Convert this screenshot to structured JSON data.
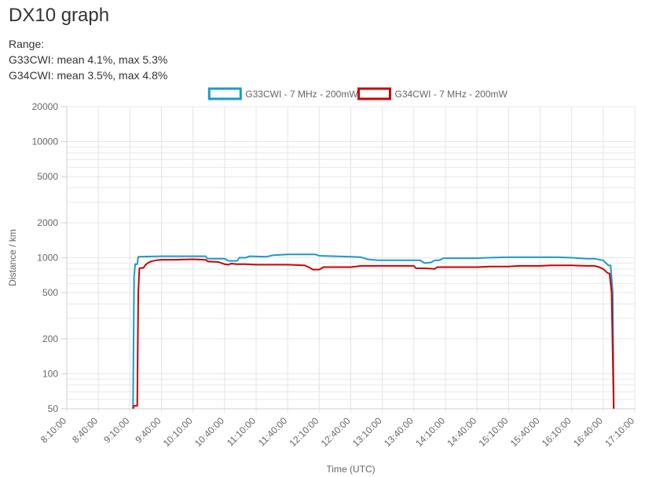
{
  "page": {
    "title": "DX10 graph",
    "range_label": "Range:",
    "stats": [
      "G33CWI: mean 4.1%, max 5.3%",
      "G34CWI: mean 3.5%, max 4.8%"
    ]
  },
  "chart_data": {
    "type": "line",
    "title": "",
    "xlabel": "Time (UTC)",
    "ylabel": "Distance / km",
    "yscale": "log",
    "ylim": [
      50,
      20000
    ],
    "xlim": [
      "8:10:00",
      "17:10:00"
    ],
    "xticks": [
      "8:10:00",
      "8:40:00",
      "9:10:00",
      "9:40:00",
      "10:10:00",
      "10:40:00",
      "11:10:00",
      "11:40:00",
      "12:10:00",
      "12:40:00",
      "13:10:00",
      "13:40:00",
      "14:10:00",
      "14:40:00",
      "15:10:00",
      "15:40:00",
      "16:10:00",
      "16:40:00",
      "17:10:00"
    ],
    "yticks": [
      50,
      100,
      200,
      500,
      1000,
      2000,
      5000,
      10000,
      20000
    ],
    "grid": true,
    "legend_position": "top-center",
    "series": [
      {
        "name": "G33CWI - 7 MHz - 200mW",
        "color": "#1a9bc9",
        "points": [
          [
            "9:13:00",
            50
          ],
          [
            "9:14:00",
            680
          ],
          [
            "9:15:00",
            880
          ],
          [
            "9:17:00",
            880
          ],
          [
            "9:18:00",
            1020
          ],
          [
            "9:40:00",
            1030
          ],
          [
            "10:10:00",
            1030
          ],
          [
            "10:22:00",
            1030
          ],
          [
            "10:24:00",
            980
          ],
          [
            "10:40:00",
            980
          ],
          [
            "10:44:00",
            940
          ],
          [
            "10:52:00",
            940
          ],
          [
            "10:54:00",
            1000
          ],
          [
            "11:00:00",
            1000
          ],
          [
            "11:04:00",
            1030
          ],
          [
            "11:20:00",
            1020
          ],
          [
            "11:26:00",
            1050
          ],
          [
            "11:40:00",
            1070
          ],
          [
            "11:50:00",
            1070
          ],
          [
            "12:06:00",
            1070
          ],
          [
            "12:10:00",
            1040
          ],
          [
            "12:25:00",
            1030
          ],
          [
            "12:40:00",
            1020
          ],
          [
            "12:50:00",
            1010
          ],
          [
            "12:56:00",
            970
          ],
          [
            "13:06:00",
            950
          ],
          [
            "13:40:00",
            950
          ],
          [
            "13:46:00",
            950
          ],
          [
            "13:50:00",
            900
          ],
          [
            "13:56:00",
            910
          ],
          [
            "14:00:00",
            950
          ],
          [
            "14:04:00",
            950
          ],
          [
            "14:08:00",
            990
          ],
          [
            "14:40:00",
            990
          ],
          [
            "14:50:00",
            1000
          ],
          [
            "15:10:00",
            1010
          ],
          [
            "15:40:00",
            1010
          ],
          [
            "15:56:00",
            1010
          ],
          [
            "16:10:00",
            1000
          ],
          [
            "16:24:00",
            980
          ],
          [
            "16:32:00",
            980
          ],
          [
            "16:40:00",
            950
          ],
          [
            "16:42:00",
            910
          ],
          [
            "16:45:00",
            860
          ],
          [
            "16:47:00",
            860
          ],
          [
            "16:49:00",
            500
          ],
          [
            "16:50:00",
            50
          ]
        ]
      },
      {
        "name": "G34CWI - 7 MHz - 200mW",
        "color": "#cc0000",
        "points": [
          [
            "9:13:00",
            50
          ],
          [
            "9:14:00",
            53
          ],
          [
            "9:17:00",
            53
          ],
          [
            "9:18:00",
            500
          ],
          [
            "9:19:00",
            810
          ],
          [
            "9:23:00",
            820
          ],
          [
            "9:25:00",
            870
          ],
          [
            "9:27:00",
            900
          ],
          [
            "9:30:00",
            930
          ],
          [
            "9:35:00",
            950
          ],
          [
            "9:40:00",
            960
          ],
          [
            "9:50:00",
            960
          ],
          [
            "10:10:00",
            970
          ],
          [
            "10:22:00",
            960
          ],
          [
            "10:24:00",
            930
          ],
          [
            "10:34:00",
            920
          ],
          [
            "10:40:00",
            880
          ],
          [
            "10:44:00",
            870
          ],
          [
            "10:46:00",
            890
          ],
          [
            "10:52:00",
            880
          ],
          [
            "11:00:00",
            880
          ],
          [
            "11:10:00",
            870
          ],
          [
            "11:40:00",
            870
          ],
          [
            "11:56:00",
            860
          ],
          [
            "12:00:00",
            830
          ],
          [
            "12:04:00",
            790
          ],
          [
            "12:10:00",
            790
          ],
          [
            "12:14:00",
            830
          ],
          [
            "12:40:00",
            830
          ],
          [
            "12:50:00",
            850
          ],
          [
            "13:40:00",
            850
          ],
          [
            "13:42:00",
            810
          ],
          [
            "13:50:00",
            810
          ],
          [
            "14:00:00",
            800
          ],
          [
            "14:02:00",
            830
          ],
          [
            "14:10:00",
            830
          ],
          [
            "14:40:00",
            830
          ],
          [
            "14:52:00",
            840
          ],
          [
            "15:10:00",
            840
          ],
          [
            "15:20:00",
            850
          ],
          [
            "15:40:00",
            850
          ],
          [
            "15:50:00",
            860
          ],
          [
            "16:10:00",
            860
          ],
          [
            "16:24:00",
            850
          ],
          [
            "16:32:00",
            850
          ],
          [
            "16:36:00",
            830
          ],
          [
            "16:40:00",
            800
          ],
          [
            "16:44:00",
            740
          ],
          [
            "16:46:00",
            730
          ],
          [
            "16:48:00",
            500
          ],
          [
            "16:50:00",
            50
          ]
        ]
      }
    ]
  }
}
